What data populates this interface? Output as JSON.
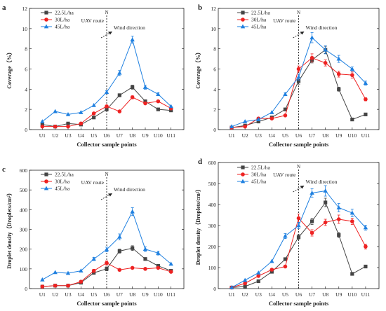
{
  "legend": [
    {
      "name": "22.5L/ha",
      "color": "#454545",
      "marker": "square"
    },
    {
      "name": "30L/ha",
      "color": "#ee2222",
      "marker": "circle"
    },
    {
      "name": "45L/ha",
      "color": "#1f80e0",
      "marker": "triangle"
    }
  ],
  "annotations": {
    "uav_route": "UAV route",
    "wind_direction": "Wind direction",
    "north": "N"
  },
  "chart_data": [
    {
      "panel": "a",
      "type": "line",
      "xlabel": "Collector sample points",
      "ylabel": "Coverage（%）",
      "categories": [
        "U1",
        "U2",
        "U3",
        "U4",
        "U5",
        "U6",
        "U7",
        "U8",
        "U9",
        "U10",
        "U11"
      ],
      "ylim": [
        0,
        12
      ],
      "yticks": [
        0,
        2,
        4,
        6,
        8,
        10,
        12
      ],
      "series": [
        {
          "name": "22.5L/ha",
          "values": [
            0.5,
            0.3,
            0.6,
            0.5,
            1.2,
            2.0,
            3.4,
            4.2,
            2.8,
            2.0,
            1.9
          ],
          "errors": [
            0,
            0,
            0,
            0,
            0,
            0.15,
            0.15,
            0.2,
            0.15,
            0,
            0
          ]
        },
        {
          "name": "30L/ha",
          "values": [
            0.3,
            0.3,
            0.3,
            0.6,
            1.6,
            2.3,
            1.8,
            3.2,
            2.6,
            2.8,
            2.1
          ],
          "errors": [
            0,
            0,
            0,
            0,
            0,
            0.1,
            0,
            0.15,
            0,
            0,
            0
          ]
        },
        {
          "name": "45L/ha",
          "values": [
            0.8,
            1.8,
            1.5,
            1.7,
            2.4,
            3.7,
            5.6,
            8.9,
            4.2,
            3.5,
            2.3
          ],
          "errors": [
            0,
            0,
            0,
            0,
            0,
            0.15,
            0.25,
            0.35,
            0.2,
            0.15,
            0
          ]
        }
      ]
    },
    {
      "panel": "b",
      "type": "line",
      "xlabel": "Collector sample points",
      "ylabel": "Coverage（%）",
      "categories": [
        "U1",
        "U2",
        "U3",
        "U4",
        "U5",
        "U6",
        "U7",
        "U8",
        "U9",
        "U10",
        "U11"
      ],
      "ylim": [
        0,
        12
      ],
      "yticks": [
        0,
        2,
        4,
        6,
        8,
        10,
        12
      ],
      "series": [
        {
          "name": "22.5L/ha",
          "values": [
            0.2,
            0.4,
            0.8,
            1.2,
            2.0,
            4.8,
            6.9,
            7.9,
            4.0,
            1.0,
            1.5
          ],
          "errors": [
            0,
            0,
            0,
            0,
            0,
            0.3,
            0.3,
            0.35,
            0.2,
            0,
            0
          ]
        },
        {
          "name": "30L/ha",
          "values": [
            0.2,
            0.3,
            1.1,
            1.1,
            1.4,
            6.0,
            7.1,
            6.6,
            5.5,
            5.4,
            3.0
          ],
          "errors": [
            0,
            0,
            0,
            0,
            0,
            0.3,
            0.4,
            0.3,
            0.3,
            0.3,
            0.15
          ]
        },
        {
          "name": "45L/ha",
          "values": [
            0.3,
            0.8,
            1.0,
            1.7,
            3.5,
            5.2,
            9.1,
            7.9,
            7.0,
            6.0,
            4.6
          ],
          "errors": [
            0,
            0,
            0,
            0,
            0.15,
            0.3,
            0.5,
            0.4,
            0.35,
            0.2,
            0.2
          ]
        }
      ]
    },
    {
      "panel": "c",
      "type": "line",
      "xlabel": "Collector sample points",
      "ylabel": "Droplet density（Droplets/cm²）",
      "categories": [
        "U1",
        "U2",
        "U3",
        "U4",
        "U5",
        "U6",
        "U7",
        "U8",
        "U9",
        "U10",
        "U11"
      ],
      "ylim": [
        0,
        600
      ],
      "yticks": [
        0,
        100,
        200,
        300,
        400,
        500,
        600
      ],
      "series": [
        {
          "name": "22.5L/ha",
          "values": [
            10,
            15,
            15,
            30,
            80,
            100,
            190,
            205,
            150,
            115,
            90
          ],
          "errors": [
            0,
            5,
            0,
            0,
            0,
            10,
            10,
            12,
            0,
            0,
            0
          ]
        },
        {
          "name": "30L/ha",
          "values": [
            10,
            15,
            15,
            35,
            90,
            130,
            95,
            105,
            100,
            105,
            85
          ],
          "errors": [
            0,
            0,
            0,
            0,
            8,
            10,
            0,
            0,
            0,
            0,
            0
          ]
        },
        {
          "name": "45L/ha",
          "values": [
            45,
            82,
            78,
            90,
            150,
            198,
            262,
            390,
            200,
            180,
            125
          ],
          "errors": [
            0,
            0,
            0,
            0,
            8,
            12,
            15,
            20,
            12,
            10,
            0
          ]
        }
      ]
    },
    {
      "panel": "d",
      "type": "line",
      "xlabel": "Collector sample points",
      "ylabel": "Droplet density（Droplets/cm²）",
      "categories": [
        "U1",
        "U2",
        "U3",
        "U4",
        "U5",
        "U6",
        "U7",
        "U8",
        "U9",
        "U10",
        "U11"
      ],
      "ylim": [
        0,
        600
      ],
      "yticks": [
        0,
        100,
        200,
        300,
        400,
        500,
        600
      ],
      "series": [
        {
          "name": "22.5L/ha",
          "values": [
            5,
            10,
            35,
            80,
            140,
            245,
            320,
            410,
            255,
            70,
            105
          ],
          "errors": [
            0,
            0,
            0,
            0,
            0,
            12,
            15,
            20,
            12,
            0,
            0
          ]
        },
        {
          "name": "30L/ha",
          "values": [
            5,
            25,
            60,
            90,
            105,
            335,
            265,
            315,
            330,
            320,
            200
          ],
          "errors": [
            0,
            0,
            0,
            0,
            0,
            20,
            15,
            15,
            20,
            15,
            12
          ]
        },
        {
          "name": "45L/ha",
          "values": [
            5,
            40,
            75,
            130,
            250,
            300,
            455,
            465,
            385,
            360,
            290
          ],
          "errors": [
            0,
            0,
            0,
            0,
            12,
            15,
            20,
            25,
            20,
            18,
            12
          ]
        }
      ]
    }
  ]
}
